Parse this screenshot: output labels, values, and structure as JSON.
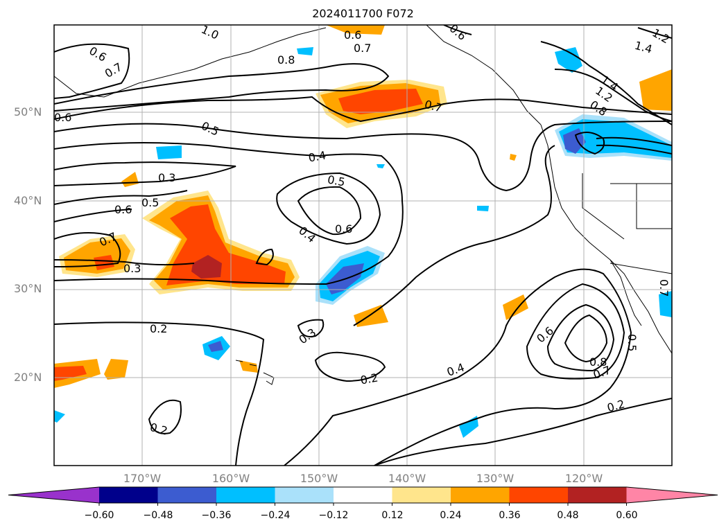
{
  "title": "2024011700 F072",
  "colors": {
    "ocean_bg": "#ffffff",
    "grid": "#b0b0b0",
    "contour": "#000000",
    "axis_label": "#808080"
  },
  "axes": {
    "lat_labels": [
      "50°N",
      "40°N",
      "30°N",
      "20°N"
    ],
    "lon_labels": [
      "170°W",
      "160°W",
      "150°W",
      "140°W",
      "130°W",
      "120°W"
    ]
  },
  "contour_labels": [
    "1.0",
    "0.6",
    "0.7",
    "0.6",
    "0.8",
    "0.6",
    "0.7",
    "0.5",
    "0.4",
    "0.3",
    "0.5",
    "0.6",
    "0.5",
    "0.6",
    "0.7",
    "0.4",
    "0.3",
    "0.2",
    "0.3",
    "0.2",
    "0.2",
    "0.4",
    "0.6",
    "0.8",
    "0.7",
    "0.5",
    "0.2",
    "1.4",
    "1.2",
    "0.8",
    "1.4",
    "1.2",
    "0.7",
    "0.7",
    "0.6"
  ],
  "colorbar": {
    "colors": [
      "#9932cc",
      "#00008b",
      "#3c5cd0",
      "#00bfff",
      "#aae1fa",
      "#ffffff",
      "#ffe58c",
      "#ffa500",
      "#ff4500",
      "#b22222",
      "#ff85a6"
    ],
    "ticks": [
      "−0.60",
      "−0.48",
      "−0.36",
      "−0.24",
      "−0.12",
      "0.12",
      "0.24",
      "0.36",
      "0.48",
      "0.60"
    ]
  }
}
